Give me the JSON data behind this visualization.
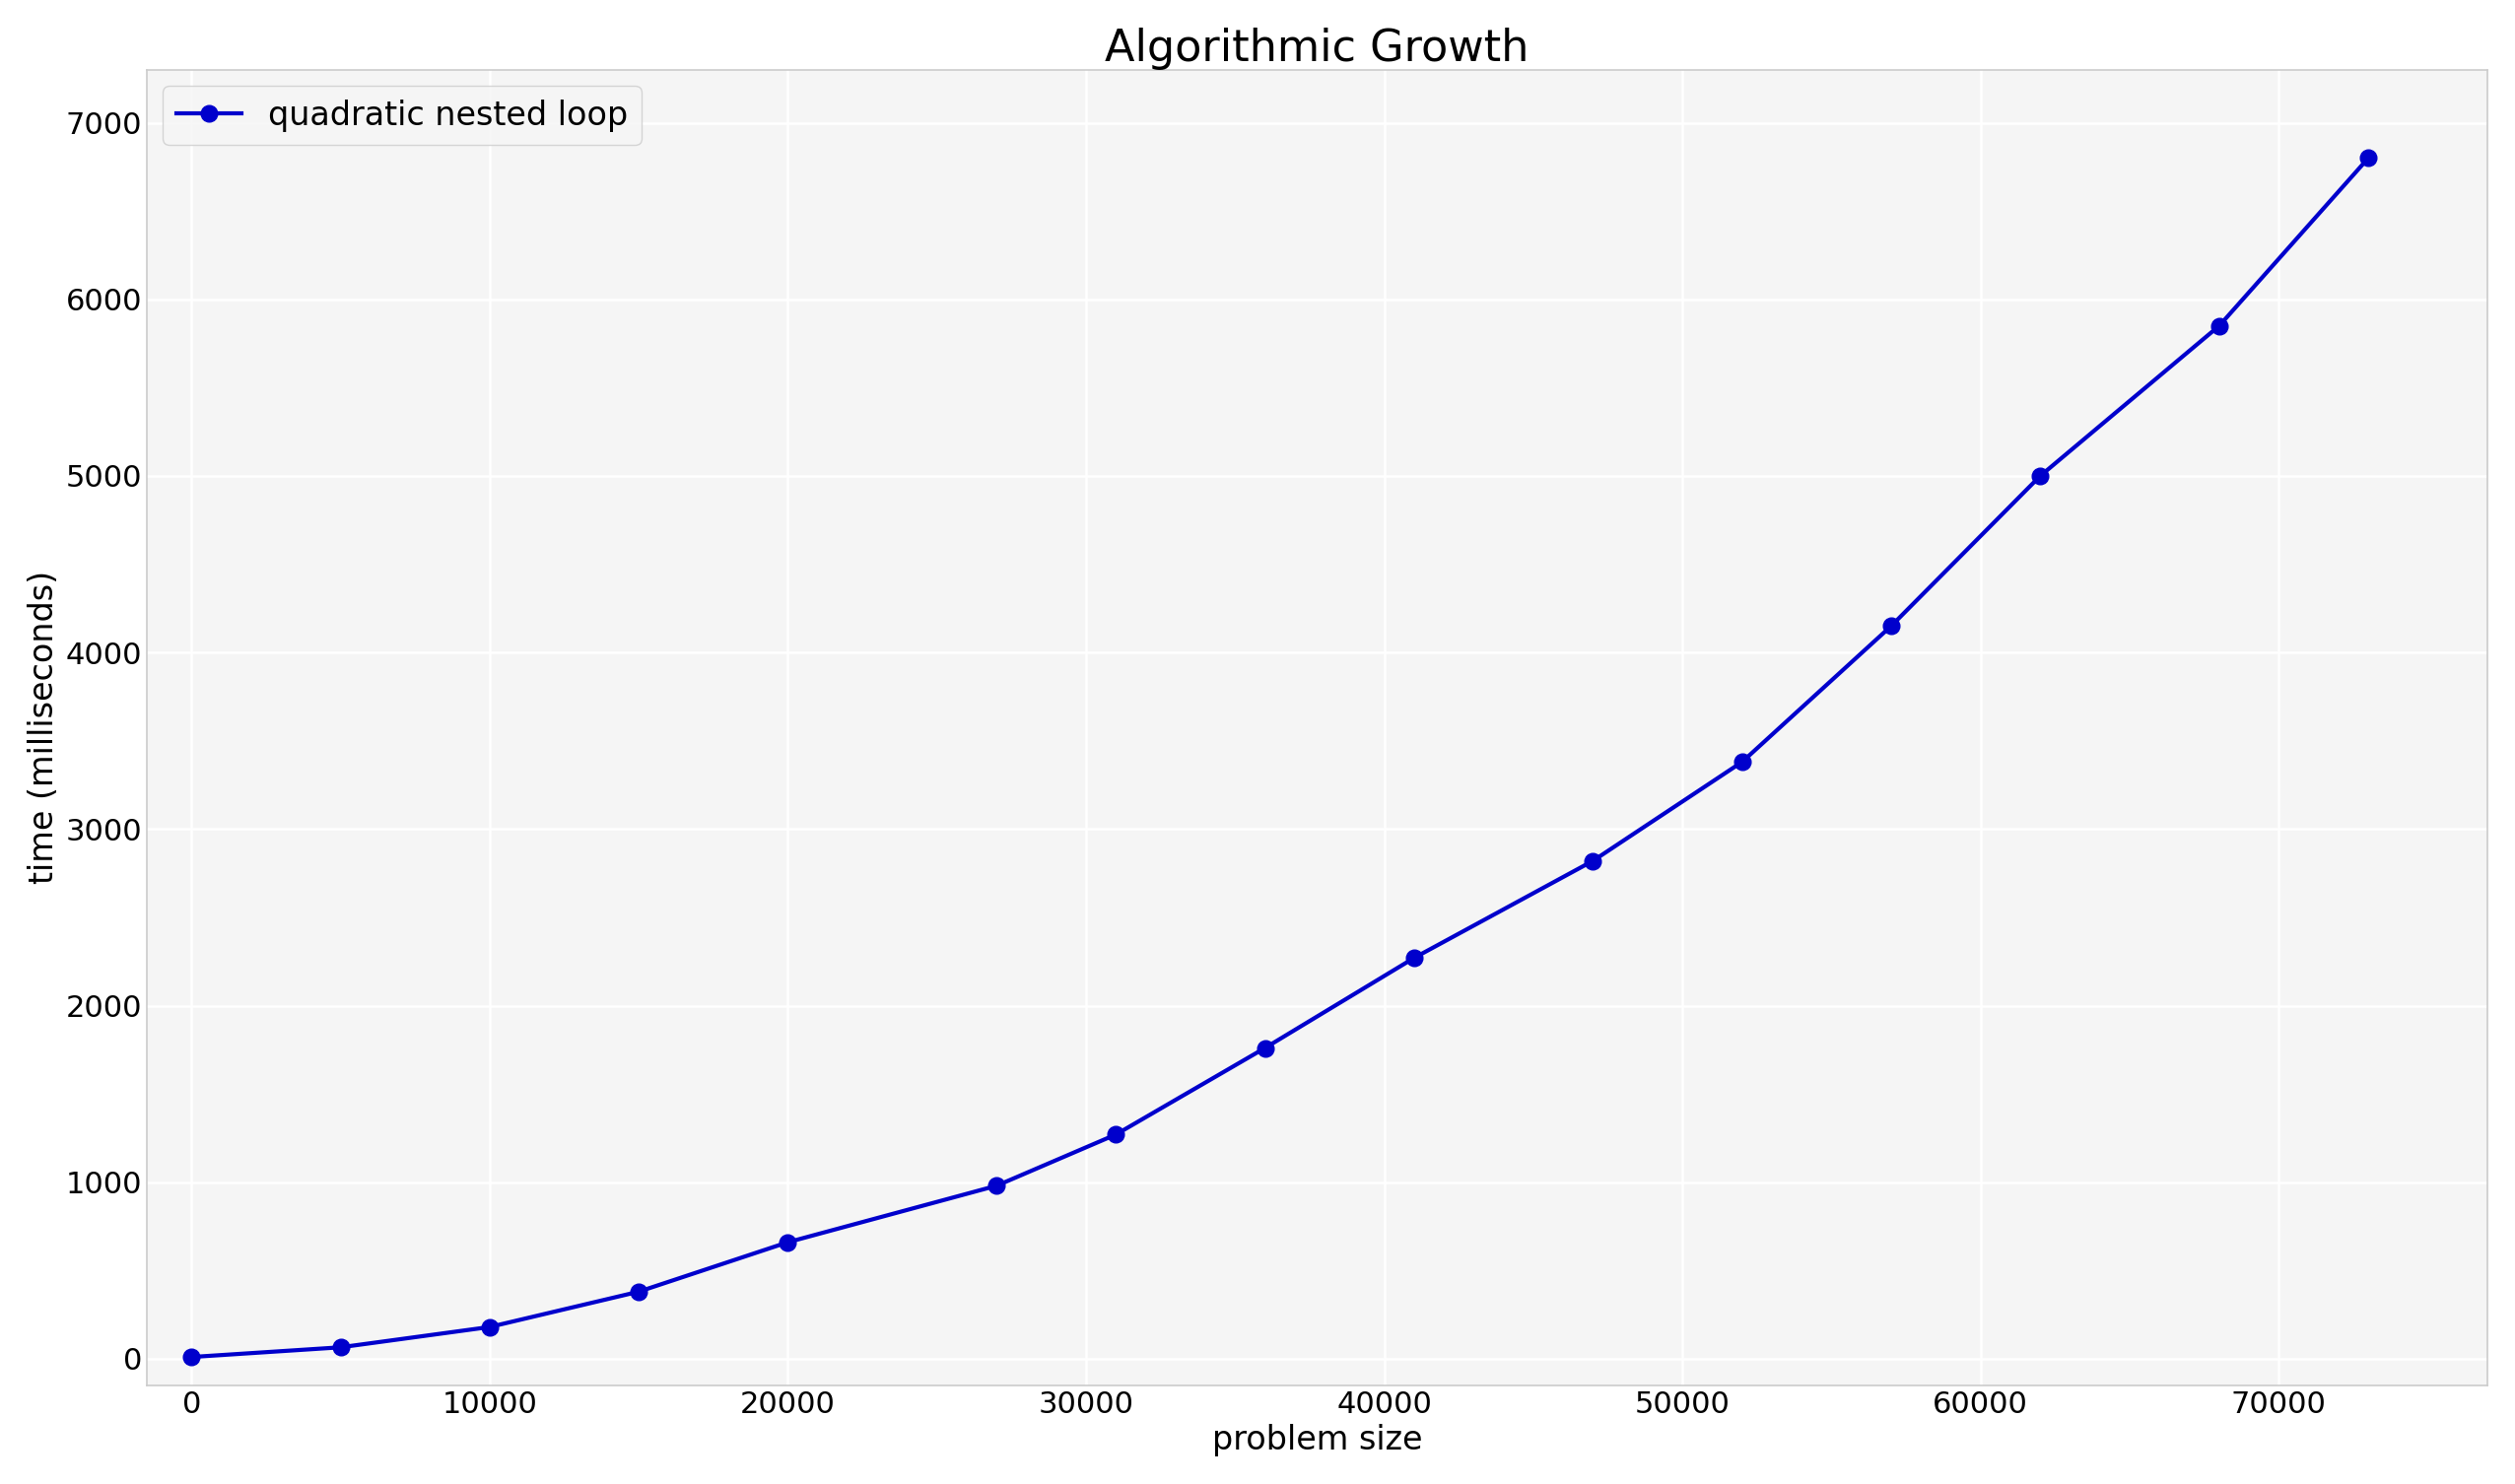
{
  "title": "Algorithmic Growth",
  "xlabel": "problem size",
  "ylabel": "time (milliseconds)",
  "legend_label": "quadratic nested loop",
  "line_color": "#0000cc",
  "marker": "o",
  "plot_bg_color": "#f5f5f5",
  "fig_bg_color": "#ffffff",
  "grid_color": "#ffffff",
  "spine_color": "#cccccc",
  "x_data": [
    0,
    5000,
    10000,
    15000,
    20000,
    27000,
    31000,
    36000,
    41000,
    47000,
    52000,
    57000,
    62000,
    68000,
    73000
  ],
  "y_data": [
    10,
    65,
    180,
    380,
    660,
    980,
    1270,
    1760,
    2270,
    2820,
    3380,
    4150,
    5000,
    5850,
    6800
  ],
  "xlim": [
    -1500,
    77000
  ],
  "ylim": [
    -150,
    7300
  ],
  "xticks": [
    0,
    10000,
    20000,
    30000,
    40000,
    50000,
    60000,
    70000
  ],
  "yticks": [
    0,
    1000,
    2000,
    3000,
    4000,
    5000,
    6000,
    7000
  ],
  "title_fontsize": 32,
  "label_fontsize": 24,
  "tick_fontsize": 22,
  "legend_fontsize": 24,
  "linewidth": 3.0,
  "markersize": 12
}
